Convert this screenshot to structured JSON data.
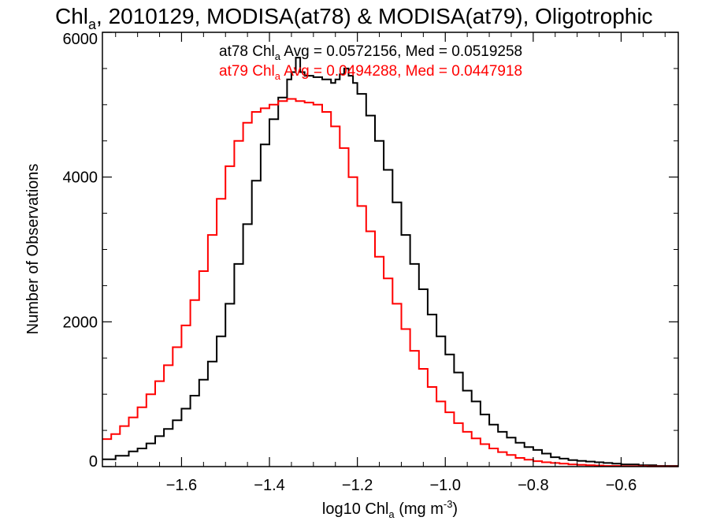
{
  "chart_data": {
    "type": "line",
    "title_parts": [
      "Chl",
      "a",
      ", 2010129, MODISA(at78) & MODISA(at79), Oligotrophic"
    ],
    "xlabel_parts": [
      "log10 Chl",
      "a",
      " (mg m",
      "-3",
      ")"
    ],
    "ylabel": "Number of Observations",
    "xlim": [
      -1.78,
      -0.47
    ],
    "ylim": [
      0,
      6000
    ],
    "x_ticks": [
      {
        "value": -1.6,
        "label": "−1.6"
      },
      {
        "value": -1.4,
        "label": "−1.4"
      },
      {
        "value": -1.2,
        "label": "−1.2"
      },
      {
        "value": -1.0,
        "label": "−1.0"
      },
      {
        "value": -0.8,
        "label": "−0.8"
      },
      {
        "value": -0.6,
        "label": "−0.6"
      }
    ],
    "y_ticks": [
      {
        "value": 0,
        "label": "0"
      },
      {
        "value": 2000,
        "label": "2000"
      },
      {
        "value": 4000,
        "label": "4000"
      },
      {
        "value": 6000,
        "label": "6000"
      }
    ],
    "annotations": [
      {
        "parts": [
          "at78 Chl",
          "a",
          " Avg = 0.0572156, Med = 0.0519258"
        ],
        "color": "#000000"
      },
      {
        "parts": [
          "at79 Chl",
          "a",
          " Avg = 0.0494288, Med = 0.0447918"
        ],
        "color": "#ff0000"
      }
    ],
    "series": [
      {
        "color": "#000000",
        "step": true,
        "points": [
          [
            -1.78,
            100
          ],
          [
            -1.75,
            150
          ],
          [
            -1.72,
            210
          ],
          [
            -1.7,
            250
          ],
          [
            -1.68,
            320
          ],
          [
            -1.66,
            420
          ],
          [
            -1.64,
            520
          ],
          [
            -1.62,
            640
          ],
          [
            -1.6,
            800
          ],
          [
            -1.58,
            980
          ],
          [
            -1.56,
            1200
          ],
          [
            -1.54,
            1450
          ],
          [
            -1.52,
            1800
          ],
          [
            -1.5,
            2250
          ],
          [
            -1.48,
            2800
          ],
          [
            -1.46,
            3350
          ],
          [
            -1.44,
            3950
          ],
          [
            -1.42,
            4450
          ],
          [
            -1.4,
            4800
          ],
          [
            -1.38,
            5100
          ],
          [
            -1.36,
            5350
          ],
          [
            -1.35,
            5450
          ],
          [
            -1.34,
            5650
          ],
          [
            -1.33,
            5450
          ],
          [
            -1.32,
            5400
          ],
          [
            -1.3,
            5380
          ],
          [
            -1.28,
            5350
          ],
          [
            -1.26,
            5300
          ],
          [
            -1.25,
            5350
          ],
          [
            -1.24,
            5420
          ],
          [
            -1.23,
            5500
          ],
          [
            -1.22,
            5400
          ],
          [
            -1.21,
            5300
          ],
          [
            -1.2,
            5150
          ],
          [
            -1.18,
            4850
          ],
          [
            -1.16,
            4500
          ],
          [
            -1.14,
            4100
          ],
          [
            -1.12,
            3650
          ],
          [
            -1.1,
            3200
          ],
          [
            -1.08,
            2800
          ],
          [
            -1.06,
            2450
          ],
          [
            -1.04,
            2100
          ],
          [
            -1.02,
            1800
          ],
          [
            -1.0,
            1550
          ],
          [
            -0.98,
            1300
          ],
          [
            -0.96,
            1050
          ],
          [
            -0.94,
            900
          ],
          [
            -0.92,
            720
          ],
          [
            -0.9,
            580
          ],
          [
            -0.88,
            480
          ],
          [
            -0.86,
            400
          ],
          [
            -0.84,
            330
          ],
          [
            -0.82,
            270
          ],
          [
            -0.8,
            230
          ],
          [
            -0.78,
            180
          ],
          [
            -0.76,
            130
          ],
          [
            -0.74,
            110
          ],
          [
            -0.72,
            90
          ],
          [
            -0.7,
            80
          ],
          [
            -0.68,
            70
          ],
          [
            -0.66,
            60
          ],
          [
            -0.64,
            50
          ],
          [
            -0.62,
            40
          ],
          [
            -0.6,
            30
          ],
          [
            -0.58,
            30
          ],
          [
            -0.56,
            20
          ],
          [
            -0.54,
            20
          ],
          [
            -0.52,
            10
          ],
          [
            -0.5,
            10
          ],
          [
            -0.47,
            10
          ]
        ]
      },
      {
        "color": "#ff0000",
        "step": true,
        "points": [
          [
            -1.78,
            380
          ],
          [
            -1.76,
            450
          ],
          [
            -1.74,
            560
          ],
          [
            -1.72,
            680
          ],
          [
            -1.7,
            820
          ],
          [
            -1.68,
            1000
          ],
          [
            -1.66,
            1180
          ],
          [
            -1.64,
            1400
          ],
          [
            -1.62,
            1650
          ],
          [
            -1.6,
            1950
          ],
          [
            -1.58,
            2300
          ],
          [
            -1.56,
            2700
          ],
          [
            -1.54,
            3200
          ],
          [
            -1.52,
            3700
          ],
          [
            -1.5,
            4150
          ],
          [
            -1.48,
            4500
          ],
          [
            -1.46,
            4750
          ],
          [
            -1.44,
            4900
          ],
          [
            -1.42,
            4950
          ],
          [
            -1.4,
            5000
          ],
          [
            -1.38,
            5050
          ],
          [
            -1.36,
            5080
          ],
          [
            -1.34,
            5050
          ],
          [
            -1.32,
            5030
          ],
          [
            -1.3,
            5000
          ],
          [
            -1.28,
            4900
          ],
          [
            -1.26,
            4700
          ],
          [
            -1.24,
            4400
          ],
          [
            -1.22,
            4000
          ],
          [
            -1.2,
            3600
          ],
          [
            -1.18,
            3250
          ],
          [
            -1.16,
            2900
          ],
          [
            -1.14,
            2600
          ],
          [
            -1.12,
            2250
          ],
          [
            -1.1,
            1900
          ],
          [
            -1.08,
            1600
          ],
          [
            -1.06,
            1350
          ],
          [
            -1.04,
            1100
          ],
          [
            -1.02,
            900
          ],
          [
            -1.0,
            750
          ],
          [
            -0.98,
            600
          ],
          [
            -0.96,
            480
          ],
          [
            -0.94,
            390
          ],
          [
            -0.92,
            310
          ],
          [
            -0.9,
            250
          ],
          [
            -0.88,
            200
          ],
          [
            -0.86,
            160
          ],
          [
            -0.84,
            120
          ],
          [
            -0.82,
            95
          ],
          [
            -0.8,
            75
          ],
          [
            -0.78,
            60
          ],
          [
            -0.76,
            50
          ],
          [
            -0.74,
            40
          ],
          [
            -0.72,
            30
          ],
          [
            -0.7,
            25
          ],
          [
            -0.68,
            20
          ],
          [
            -0.66,
            15
          ],
          [
            -0.64,
            10
          ],
          [
            -0.62,
            10
          ],
          [
            -0.6,
            5
          ],
          [
            -0.58,
            5
          ],
          [
            -0.56,
            5
          ],
          [
            -0.54,
            3
          ],
          [
            -0.52,
            2
          ],
          [
            -0.5,
            2
          ],
          [
            -0.47,
            2
          ]
        ]
      }
    ]
  }
}
